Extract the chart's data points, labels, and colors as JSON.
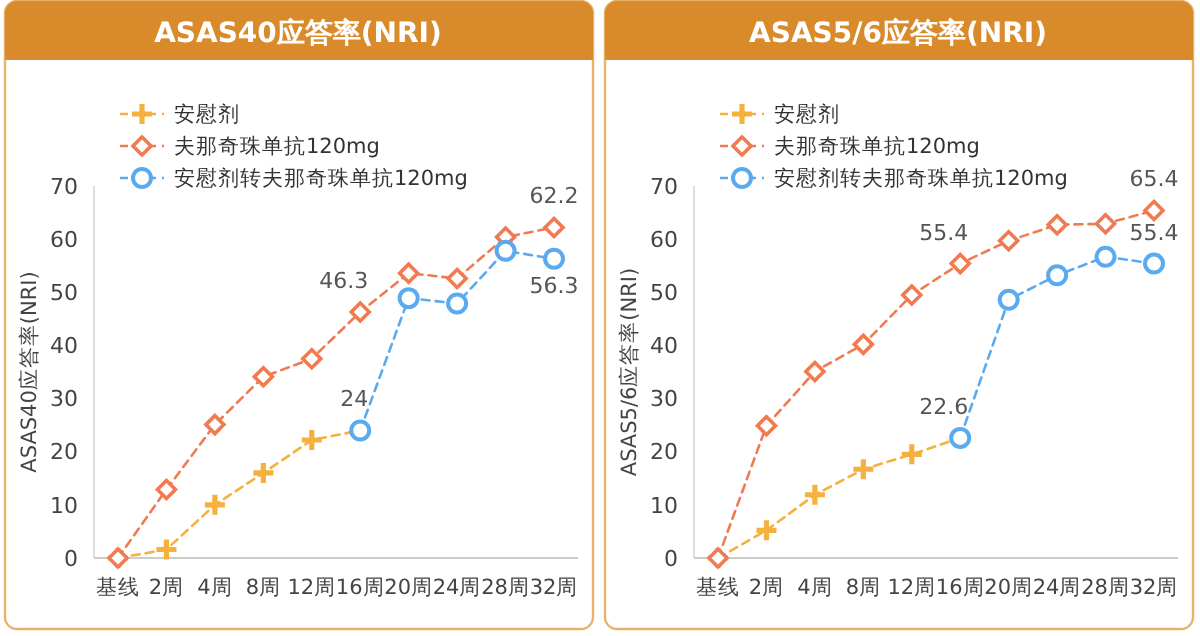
{
  "chart_data": [
    {
      "type": "line",
      "title": "ASAS40应答率(NRI)",
      "ylabel": "ASAS40应答率(NRI)",
      "categories": [
        "基线",
        "2周",
        "4周",
        "8周",
        "12周",
        "16周",
        "20周",
        "24周",
        "28周",
        "32周"
      ],
      "ylim": [
        0,
        70
      ],
      "yticks": [
        0,
        10,
        20,
        30,
        40,
        50,
        60,
        70
      ],
      "grid": false,
      "legend": "top left",
      "line_style": "dashed",
      "series": [
        {
          "name": "安慰剂",
          "color": "#f5b13d",
          "marker": "cross",
          "values": [
            0,
            1.6,
            10,
            16,
            22.2,
            24,
            null,
            null,
            null,
            null
          ]
        },
        {
          "name": "夫那奇珠单抗120mg",
          "color": "#f07b52",
          "marker": "diamond",
          "values": [
            0,
            12.9,
            25.1,
            34.1,
            37.5,
            46.3,
            53.6,
            52.6,
            60.4,
            62.2
          ],
          "value_labels": [
            null,
            null,
            null,
            null,
            null,
            "46.3",
            null,
            null,
            null,
            "62.2"
          ]
        },
        {
          "name": "安慰剂转夫那奇珠单抗120mg",
          "color": "#5aaaf0",
          "marker": "circle",
          "values": [
            null,
            null,
            null,
            null,
            null,
            24,
            48.9,
            47.9,
            57.8,
            56.3
          ],
          "value_labels": [
            null,
            null,
            null,
            null,
            null,
            "24",
            null,
            null,
            null,
            "56.3"
          ]
        }
      ]
    },
    {
      "type": "line",
      "title": "ASAS5/6应答率(NRI)",
      "ylabel": "ASAS5/6应答率(NRI)",
      "categories": [
        "基线",
        "2周",
        "4周",
        "8周",
        "12周",
        "16周",
        "20周",
        "24周",
        "28周",
        "32周"
      ],
      "ylim": [
        0,
        70
      ],
      "yticks": [
        0,
        10,
        20,
        30,
        40,
        50,
        60,
        70
      ],
      "grid": false,
      "legend": "top left",
      "line_style": "dashed",
      "series": [
        {
          "name": "安慰剂",
          "color": "#f5b13d",
          "marker": "cross",
          "values": [
            0,
            5.2,
            11.9,
            16.7,
            19.5,
            22.6,
            null,
            null,
            null,
            null
          ]
        },
        {
          "name": "夫那奇珠单抗120mg",
          "color": "#f07b52",
          "marker": "diamond",
          "values": [
            0,
            24.9,
            35.1,
            40.2,
            49.5,
            55.4,
            59.7,
            62.7,
            62.9,
            65.4
          ],
          "value_labels": [
            null,
            null,
            null,
            null,
            null,
            "55.4",
            null,
            null,
            null,
            "65.4"
          ]
        },
        {
          "name": "安慰剂转夫那奇珠单抗120mg",
          "color": "#5aaaf0",
          "marker": "circle",
          "values": [
            null,
            null,
            null,
            null,
            null,
            22.6,
            48.6,
            53.2,
            56.7,
            55.4
          ],
          "value_labels": [
            null,
            null,
            null,
            null,
            null,
            "22.6",
            null,
            null,
            null,
            "55.4"
          ]
        }
      ]
    }
  ]
}
